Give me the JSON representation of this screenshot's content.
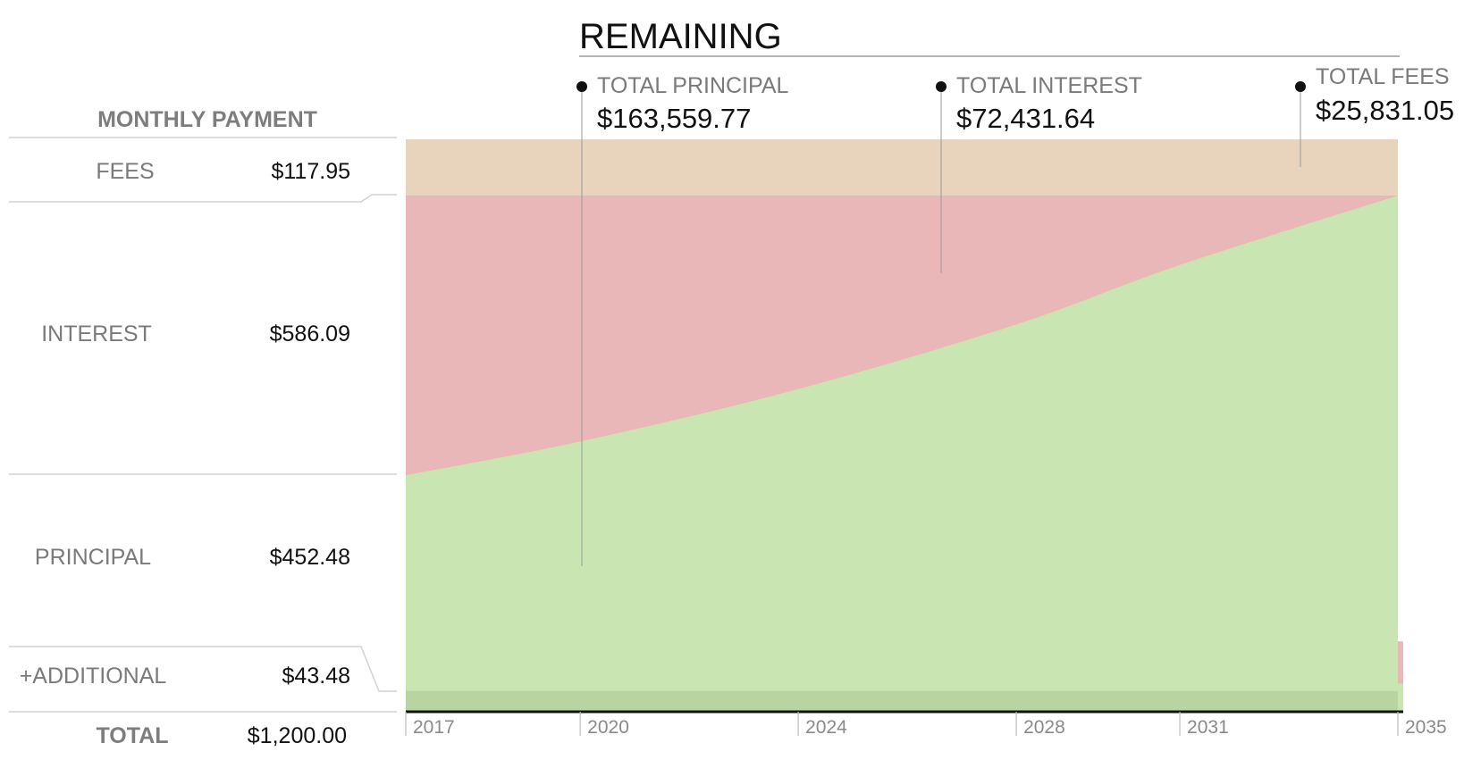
{
  "title": "REMAINING",
  "monthly_payment": {
    "header": "MONTHLY PAYMENT",
    "rows": [
      {
        "label": "FEES",
        "value": "$117.95"
      },
      {
        "label": "INTEREST",
        "value": "$586.09"
      },
      {
        "label": "PRINCIPAL",
        "value": "$452.48"
      },
      {
        "label": "+ADDITIONAL",
        "value": "$43.48"
      }
    ],
    "total_label": "TOTAL",
    "total_value": "$1,200.00"
  },
  "totals": [
    {
      "label": "TOTAL PRINCIPAL",
      "value": "$163,559.77"
    },
    {
      "label": "TOTAL INTEREST",
      "value": "$72,431.64"
    },
    {
      "label": "TOTAL FEES",
      "value": "$25,831.05"
    }
  ],
  "colors": {
    "principal": "#c9e5b1",
    "interest": "#e9b7b7",
    "fees": "#e8d3bd",
    "additional": "#b8d5a1",
    "axis": "#111111",
    "rule": "#d2d2d2"
  },
  "chart_data": {
    "type": "area",
    "title": "REMAINING",
    "x_ticks": [
      "2017",
      "2020",
      "2024",
      "2028",
      "2031",
      "2035"
    ],
    "x_tick_values": [
      2016.8,
      2020,
      2024,
      2028,
      2031,
      2035
    ],
    "x_range": [
      2016.8,
      2035
    ],
    "monthly_breakdown_start": {
      "fees": 117.95,
      "interest": 586.09,
      "principal": 452.48,
      "additional": 43.48
    },
    "monthly_total": 1200.0,
    "series": [
      {
        "name": "PRINCIPAL",
        "x": [
          2016.8,
          2020,
          2024,
          2028,
          2031,
          2035
        ],
        "values": [
          495.96,
          566.5,
          676.5,
          812.0,
          936.5,
          1082.05
        ]
      },
      {
        "name": "INTEREST",
        "x": [
          2016.8,
          2020,
          2024,
          2028,
          2031,
          2035
        ],
        "values": [
          586.09,
          515.55,
          405.55,
          270.05,
          145.55,
          0.0
        ]
      },
      {
        "name": "FEES",
        "x": [
          2016.8,
          2020,
          2024,
          2028,
          2031,
          2035
        ],
        "values": [
          117.95,
          117.95,
          117.95,
          117.95,
          117.95,
          117.95
        ]
      }
    ],
    "ylim": [
      0,
      1200
    ]
  }
}
